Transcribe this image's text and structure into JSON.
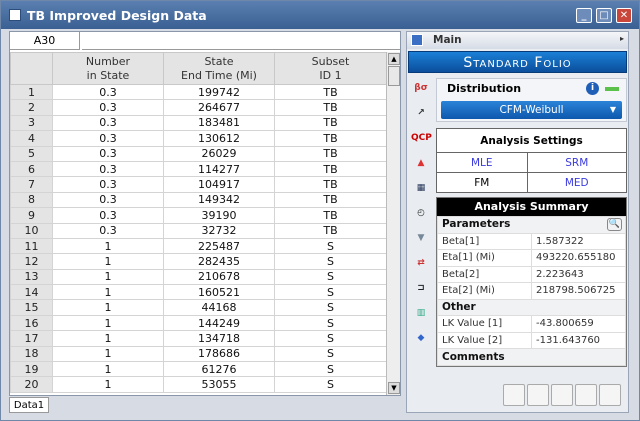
{
  "window": {
    "title": "TB Improved Design Data",
    "buttons": [
      "_",
      "□",
      "✕"
    ]
  },
  "sheet": {
    "cell_ref": "A30",
    "formula": "",
    "tab": "Data1",
    "headers": [
      [
        "Number",
        "in State"
      ],
      [
        "State",
        "End Time (Mi)"
      ],
      [
        "Subset",
        "ID 1"
      ]
    ],
    "rows": [
      [
        "1",
        "0.3",
        "199742",
        "TB"
      ],
      [
        "2",
        "0.3",
        "264677",
        "TB"
      ],
      [
        "3",
        "0.3",
        "183481",
        "TB"
      ],
      [
        "4",
        "0.3",
        "130612",
        "TB"
      ],
      [
        "5",
        "0.3",
        "26029",
        "TB"
      ],
      [
        "6",
        "0.3",
        "114277",
        "TB"
      ],
      [
        "7",
        "0.3",
        "104917",
        "TB"
      ],
      [
        "8",
        "0.3",
        "149342",
        "TB"
      ],
      [
        "9",
        "0.3",
        "39190",
        "TB"
      ],
      [
        "10",
        "0.3",
        "32732",
        "TB"
      ],
      [
        "11",
        "1",
        "225487",
        "S"
      ],
      [
        "12",
        "1",
        "282435",
        "S"
      ],
      [
        "13",
        "1",
        "210678",
        "S"
      ],
      [
        "14",
        "1",
        "160521",
        "S"
      ],
      [
        "15",
        "1",
        "44168",
        "S"
      ],
      [
        "16",
        "1",
        "144249",
        "S"
      ],
      [
        "17",
        "1",
        "134718",
        "S"
      ],
      [
        "18",
        "1",
        "178686",
        "S"
      ],
      [
        "19",
        "1",
        "61276",
        "S"
      ],
      [
        "20",
        "1",
        "53055",
        "S"
      ]
    ]
  },
  "panel": {
    "main": "Main",
    "folio": "Standard Folio",
    "distribution": {
      "label": "Distribution",
      "value": "CFM-Weibull"
    },
    "settings": {
      "title": "Analysis Settings",
      "cells": [
        "MLE",
        "SRM",
        "FM",
        "MED"
      ],
      "accent": "#3a3adf"
    },
    "summary": {
      "title": "Analysis Summary",
      "parameters_label": "Parameters",
      "parameters": [
        [
          "Beta[1]",
          "1.587322"
        ],
        [
          "Eta[1] (Mi)",
          "493220.655180"
        ],
        [
          "Beta[2]",
          "2.223643"
        ],
        [
          "Eta[2] (Mi)",
          "218798.506725"
        ]
      ],
      "other_label": "Other",
      "other": [
        [
          "LK Value [1]",
          "-43.800659"
        ],
        [
          "LK Value [2]",
          "-131.643760"
        ]
      ],
      "comments_label": "Comments"
    }
  },
  "icons": [
    "beta-sigma-icon",
    "plot-icon",
    "qcp-icon",
    "chart-icon",
    "grid-icon",
    "gauge-icon",
    "filter-icon",
    "transfer-icon",
    "bracket-icon",
    "color-grid-icon",
    "diamond-icon"
  ]
}
